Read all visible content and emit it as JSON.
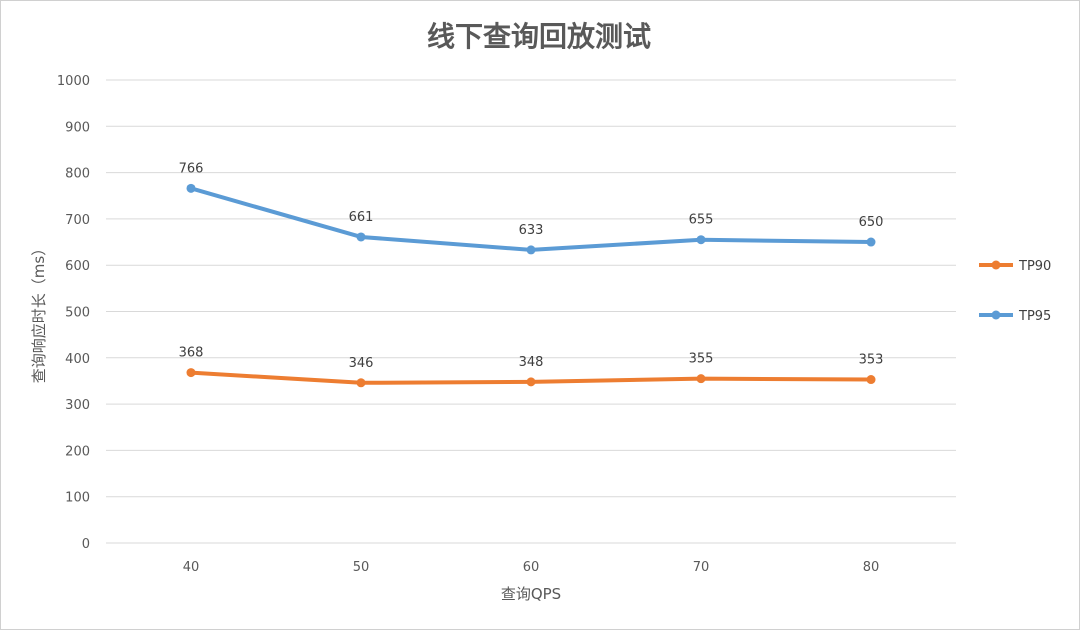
{
  "chart_data": {
    "type": "line",
    "title": "线下查询回放测试",
    "xlabel": "查询QPS",
    "ylabel": "查询响应时长（ms）",
    "categories": [
      "40",
      "50",
      "60",
      "70",
      "80"
    ],
    "ylim": [
      0,
      1000
    ],
    "yticks": [
      0,
      100,
      200,
      300,
      400,
      500,
      600,
      700,
      800,
      900,
      1000
    ],
    "grid": true,
    "legend_position": "right",
    "series": [
      {
        "name": "TP90",
        "color": "#ed7d31",
        "values": [
          368,
          346,
          348,
          355,
          353
        ]
      },
      {
        "name": "TP95",
        "color": "#5b9bd5",
        "values": [
          766,
          661,
          633,
          655,
          650
        ]
      }
    ]
  }
}
